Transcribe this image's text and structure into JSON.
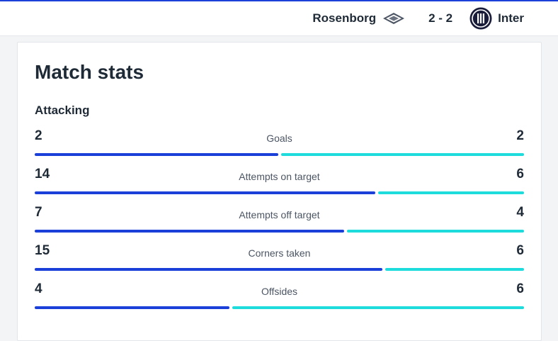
{
  "header": {
    "home_team": "Rosenborg",
    "score": "2 - 2",
    "away_team": "Inter"
  },
  "card": {
    "title": "Match stats",
    "section": "Attacking"
  },
  "colors": {
    "home_bar": "#1b3fd9",
    "away_bar": "#1fdcdc"
  },
  "stats": [
    {
      "label": "Goals",
      "home": 2,
      "away": 2
    },
    {
      "label": "Attempts on target",
      "home": 14,
      "away": 6
    },
    {
      "label": "Attempts off target",
      "home": 7,
      "away": 4
    },
    {
      "label": "Corners taken",
      "home": 15,
      "away": 6
    },
    {
      "label": "Offsides",
      "home": 4,
      "away": 6
    }
  ]
}
